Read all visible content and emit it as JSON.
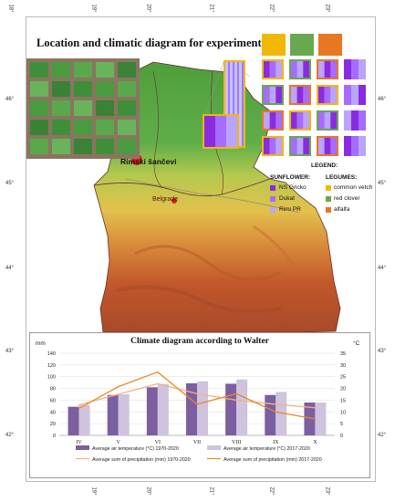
{
  "title": "Location and climatic diagram for experiment field",
  "coordinates": {
    "lon_top": [
      "19°",
      "20°",
      "21°",
      "22°",
      "23°"
    ],
    "lon_bottom": [
      "19°",
      "20°",
      "21°",
      "22°",
      "23°"
    ],
    "lat_left": [
      "46°",
      "45°",
      "44°",
      "43°",
      "42°"
    ],
    "lat_right": [
      "46°",
      "45°",
      "44°",
      "43°",
      "42°"
    ],
    "lon_left_extra": "18°"
  },
  "places": {
    "experiment_site": "Rimski šančevi",
    "capital": "Belgrade"
  },
  "legend": {
    "heading": "LEGEND:",
    "sunflower_heading": "SUNFLOWER:",
    "legumes_heading": "LEGUMES:",
    "sunflower": [
      {
        "label": "NS Gricko",
        "color": "#8a2be2"
      },
      {
        "label": "Dukat",
        "color": "#a66cff"
      },
      {
        "label": "Rimi PR",
        "color": "#b9a5ff"
      }
    ],
    "legumes": [
      {
        "label": "common vetch",
        "color": "#f2b705"
      },
      {
        "label": "red clover",
        "color": "#6aa84f"
      },
      {
        "label": "alfalfa",
        "color": "#e87722"
      }
    ]
  },
  "colors": {
    "lowland": "#5fae4a",
    "hills": "#e8c14f",
    "mountains": "#c2572a",
    "border": "#6a2e2e",
    "site_marker": "#e02020",
    "capital_marker": "#d02020"
  },
  "chart_data": {
    "type": "bar",
    "title": "Climate diagram according to Walter",
    "categories": [
      "IV",
      "V",
      "VI",
      "VII",
      "VIII",
      "IX",
      "X"
    ],
    "y_left_label": "mm",
    "y_right_label": "°C",
    "y_left_range": [
      0,
      140
    ],
    "y_right_range": [
      0,
      35
    ],
    "y_left_ticks": [
      0,
      20,
      40,
      60,
      80,
      100,
      120,
      140
    ],
    "y_right_ticks": [
      0,
      5,
      10,
      15,
      20,
      25,
      30,
      35
    ],
    "series": [
      {
        "name": "Average air temperature (°C)  1970-2020",
        "kind": "bar",
        "axis": "right",
        "values": [
          12.2,
          17.2,
          20.5,
          22.2,
          22.0,
          17.2,
          14.0
        ],
        "color": "#7b5fa0"
      },
      {
        "name": "Average air temperature (°C)  2017-2020",
        "kind": "bar",
        "axis": "right",
        "values": [
          13.0,
          17.5,
          21.9,
          23.0,
          23.8,
          18.5,
          14.0
        ],
        "color": "#cfc3de"
      },
      {
        "name": "Average sum of precipitation (mm) 1970-2020",
        "kind": "line",
        "axis": "left",
        "values": [
          52,
          70,
          88,
          71,
          60,
          53,
          47
        ],
        "color": "#f4b183"
      },
      {
        "name": "Average sum of precipitation (mm) 2017-2020",
        "kind": "line",
        "axis": "left",
        "values": [
          46,
          83,
          108,
          53,
          71,
          40,
          28
        ],
        "color": "#e88a2a"
      }
    ]
  }
}
